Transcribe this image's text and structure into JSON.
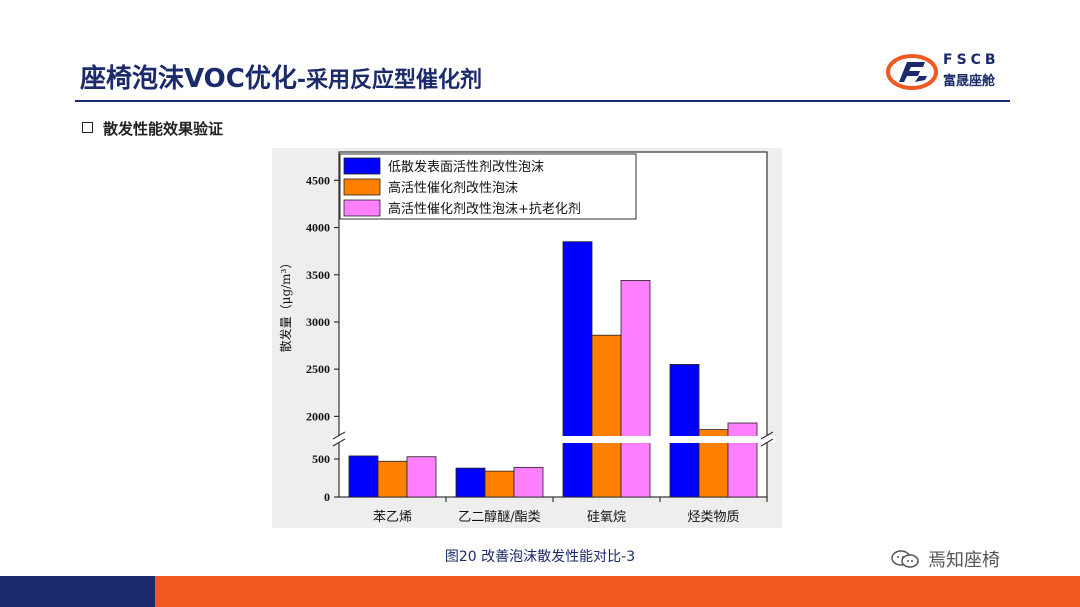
{
  "header": {
    "title_main": "座椅泡沫VOC优化",
    "title_sub": "-采用反应型催化剂",
    "logo_letters": "FSCB",
    "logo_name": "富晟座舱"
  },
  "section": {
    "heading": "散发性能效果验证"
  },
  "caption": "图20 改善泡沫散发性能对比-3",
  "watermark": "焉知座椅",
  "colors": {
    "navy": "#1b2a6b",
    "orange_band": "#f05a22",
    "chart_bg": "#eeeeee"
  },
  "chart_data": {
    "type": "bar",
    "categories": [
      "苯乙烯",
      "乙二醇醚/酯类",
      "硅氧烷",
      "烃类物质"
    ],
    "series": [
      {
        "name": "低散发表面活性剂改性泡沫",
        "color": "#0000ff",
        "values": [
          540,
          380,
          3850,
          2550
        ]
      },
      {
        "name": "高活性催化剂改性泡沫",
        "color": "#ff7f00",
        "values": [
          470,
          340,
          2860,
          1860
        ]
      },
      {
        "name": "高活性催化剂改性泡沫+抗老化剂",
        "color": "#ff80ff",
        "values": [
          530,
          390,
          3440,
          1930
        ]
      }
    ],
    "ylabel": "散发量（μg/m³）",
    "axis_break": {
      "from": 750,
      "to": 1750
    },
    "ylim": [
      0,
      4800
    ],
    "y_ticks": [
      0,
      500,
      2000,
      2500,
      3000,
      3500,
      4000,
      4500
    ],
    "legend_position": "top-left",
    "grid": false
  }
}
